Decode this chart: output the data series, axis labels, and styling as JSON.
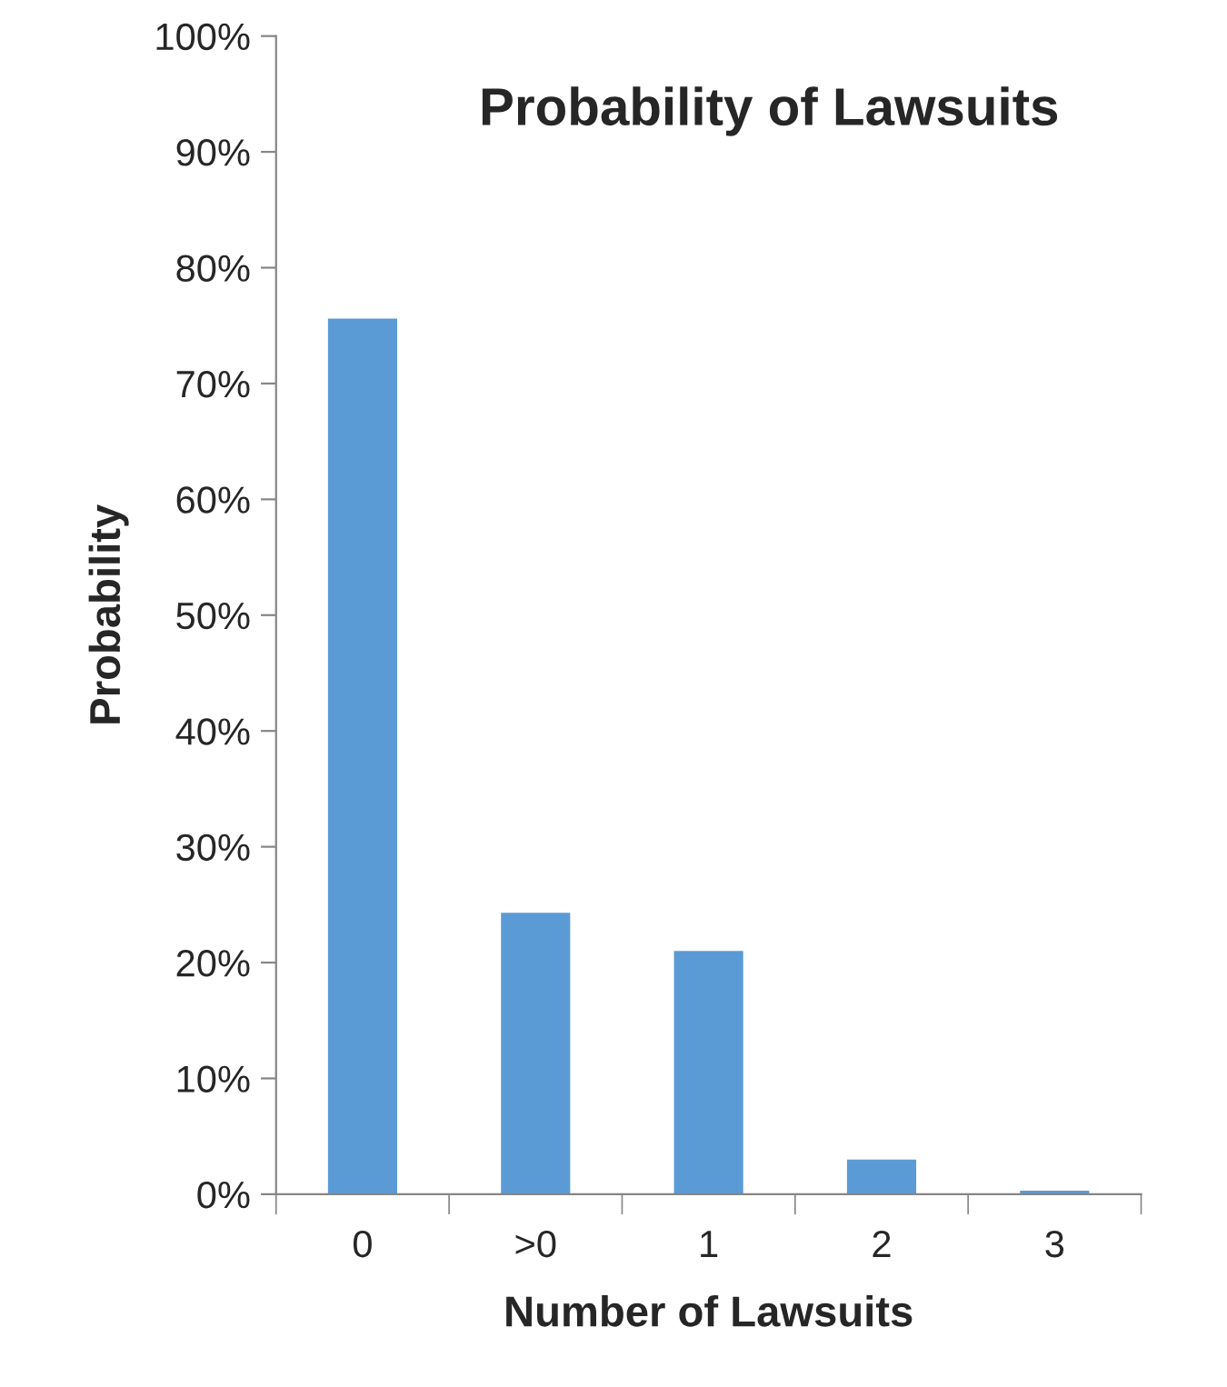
{
  "chart_data": {
    "type": "bar",
    "title": "Probability of Lawsuits",
    "xlabel": "Number of Lawsuits",
    "ylabel": "Probability",
    "categories": [
      "0",
      ">0",
      "1",
      "2",
      "3"
    ],
    "values": [
      75.6,
      24.3,
      21.0,
      3.0,
      0.3
    ],
    "color": "#5b9bd5",
    "ylim": [
      0,
      100
    ],
    "yticks": [
      {
        "value": 0,
        "label": "0%"
      },
      {
        "value": 10,
        "label": "10%"
      },
      {
        "value": 20,
        "label": "20%"
      },
      {
        "value": 30,
        "label": "30%"
      },
      {
        "value": 40,
        "label": "40%"
      },
      {
        "value": 50,
        "label": "50%"
      },
      {
        "value": 60,
        "label": "60%"
      },
      {
        "value": 70,
        "label": "70%"
      },
      {
        "value": 80,
        "label": "80%"
      },
      {
        "value": 90,
        "label": "90%"
      },
      {
        "value": 100,
        "label": "100%"
      }
    ],
    "grid": false
  }
}
